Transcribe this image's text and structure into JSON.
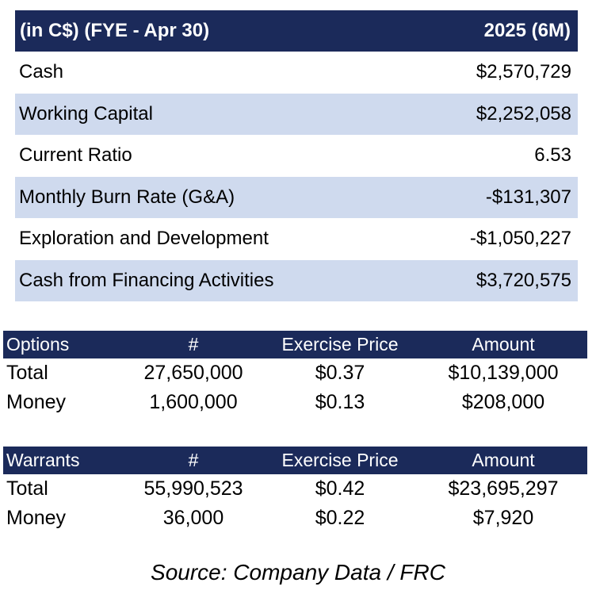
{
  "summary": {
    "header_label": "(in C$) (FYE - Apr 30)",
    "header_period": "2025 (6M)",
    "rows": [
      {
        "label": "Cash",
        "value": "$2,570,729"
      },
      {
        "label": "Working Capital",
        "value": "$2,252,058"
      },
      {
        "label": "Current Ratio",
        "value": "6.53"
      },
      {
        "label": "Monthly Burn Rate (G&A)",
        "value": "-$131,307"
      },
      {
        "label": "Exploration and Development",
        "value": "-$1,050,227"
      },
      {
        "label": "Cash from Financing Activities",
        "value": "$3,720,575"
      }
    ]
  },
  "options": {
    "headers": [
      "Options",
      "#",
      "Exercise Price",
      "Amount"
    ],
    "rows": [
      [
        "Total",
        "27,650,000",
        "$0.37",
        "$10,139,000"
      ],
      [
        "Money",
        "1,600,000",
        "$0.13",
        "$208,000"
      ]
    ]
  },
  "warrants": {
    "headers": [
      "Warrants",
      "#",
      "Exercise Price",
      "Amount"
    ],
    "rows": [
      [
        "Total",
        "55,990,523",
        "$0.42",
        "$23,695,297"
      ],
      [
        "Money",
        "36,000",
        "$0.22",
        "$7,920"
      ]
    ]
  },
  "source": "Source: Company Data / FRC",
  "colors": {
    "header_bg": "#1b2a5a",
    "row_shade": "#cfdaee"
  }
}
